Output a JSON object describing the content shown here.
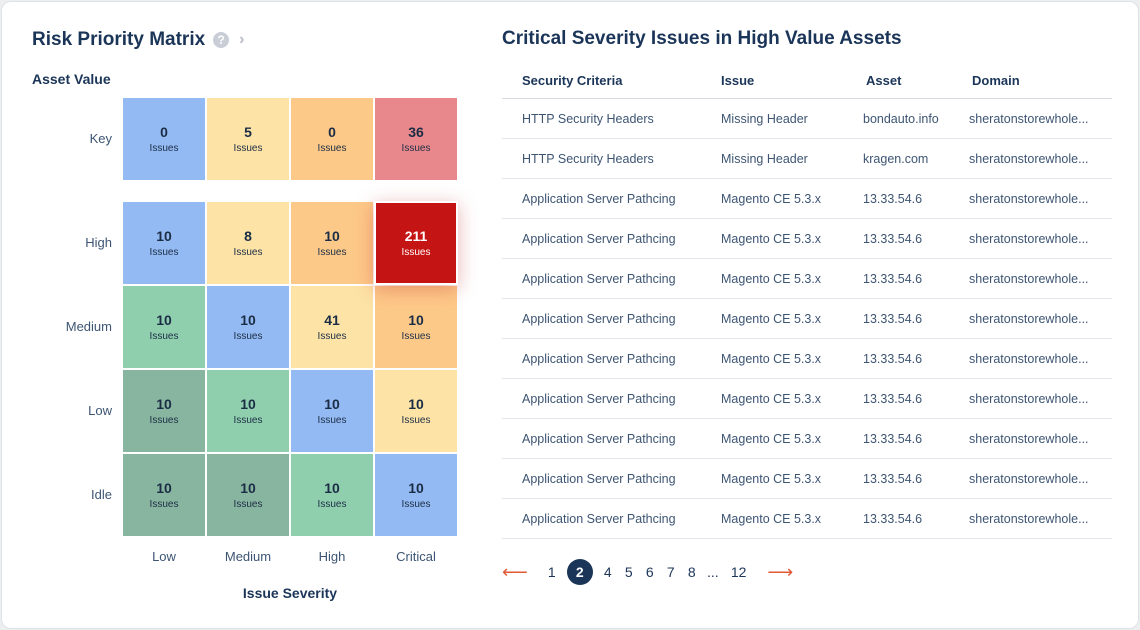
{
  "colors": {
    "blue": "#93baf2",
    "yellow_light": "#fde3a6",
    "orange": "#fdc989",
    "pink": "#e8888c",
    "red": "#c51414",
    "green_light": "#90cfae",
    "green_dark": "#88b59f",
    "title": "#1b3558",
    "accent_arrow": "#e05a36"
  },
  "matrix": {
    "title": "Risk Priority Matrix",
    "help_icon": "question-circle-icon",
    "chevron_icon": "chevron-right-icon",
    "y_axis_title": "Asset Value",
    "x_axis_title": "Issue Severity",
    "columns": [
      "Low",
      "Medium",
      "High",
      "Critical"
    ],
    "unit": "Issues",
    "rows": [
      {
        "label": "Key",
        "cells": [
          {
            "value": "0",
            "color": "#93baf2"
          },
          {
            "value": "5",
            "color": "#fde3a6"
          },
          {
            "value": "0",
            "color": "#fdc989"
          },
          {
            "value": "36",
            "color": "#e8888c"
          }
        ]
      },
      {
        "label": "High",
        "cells": [
          {
            "value": "10",
            "color": "#93baf2"
          },
          {
            "value": "8",
            "color": "#fde3a6"
          },
          {
            "value": "10",
            "color": "#fdc989"
          },
          {
            "value": "211",
            "color": "#c51414",
            "highlight": true
          }
        ]
      },
      {
        "label": "Medium",
        "cells": [
          {
            "value": "10",
            "color": "#90cfae"
          },
          {
            "value": "10",
            "color": "#93baf2"
          },
          {
            "value": "41",
            "color": "#fde3a6"
          },
          {
            "value": "10",
            "color": "#fdc989"
          }
        ]
      },
      {
        "label": "Low",
        "cells": [
          {
            "value": "10",
            "color": "#88b59f"
          },
          {
            "value": "10",
            "color": "#90cfae"
          },
          {
            "value": "10",
            "color": "#93baf2"
          },
          {
            "value": "10",
            "color": "#fde3a6"
          }
        ]
      },
      {
        "label": "Idle",
        "cells": [
          {
            "value": "10",
            "color": "#88b59f"
          },
          {
            "value": "10",
            "color": "#88b59f"
          },
          {
            "value": "10",
            "color": "#90cfae"
          },
          {
            "value": "10",
            "color": "#93baf2"
          }
        ]
      }
    ]
  },
  "table": {
    "title": "Critical Severity Issues in High Value Assets",
    "headers": [
      "Security Criteria",
      "Issue",
      "Asset",
      "Domain"
    ],
    "rows": [
      [
        "HTTP Security Headers",
        "Missing Header",
        "bondauto.info",
        "sheratonstorewhole..."
      ],
      [
        "HTTP Security Headers",
        "Missing Header",
        "kragen.com",
        "sheratonstorewhole..."
      ],
      [
        "Application Server Pathcing",
        "Magento CE 5.3.x",
        "13.33.54.6",
        "sheratonstorewhole..."
      ],
      [
        "Application Server Pathcing",
        "Magento CE 5.3.x",
        "13.33.54.6",
        "sheratonstorewhole..."
      ],
      [
        "Application Server Pathcing",
        "Magento CE 5.3.x",
        "13.33.54.6",
        "sheratonstorewhole..."
      ],
      [
        "Application Server Pathcing",
        "Magento CE 5.3.x",
        "13.33.54.6",
        "sheratonstorewhole..."
      ],
      [
        "Application Server Pathcing",
        "Magento CE 5.3.x",
        "13.33.54.6",
        "sheratonstorewhole..."
      ],
      [
        "Application Server Pathcing",
        "Magento CE 5.3.x",
        "13.33.54.6",
        "sheratonstorewhole..."
      ],
      [
        "Application Server Pathcing",
        "Magento CE 5.3.x",
        "13.33.54.6",
        "sheratonstorewhole..."
      ],
      [
        "Application Server Pathcing",
        "Magento CE 5.3.x",
        "13.33.54.6",
        "sheratonstorewhole..."
      ],
      [
        "Application Server Pathcing",
        "Magento CE 5.3.x",
        "13.33.54.6",
        "sheratonstorewhole..."
      ]
    ]
  },
  "pagination": {
    "prev": "⟵",
    "next": "⟶",
    "pages": [
      "1",
      "2",
      "4",
      "5",
      "6",
      "7",
      "8",
      "...",
      "12"
    ],
    "active": "2"
  }
}
